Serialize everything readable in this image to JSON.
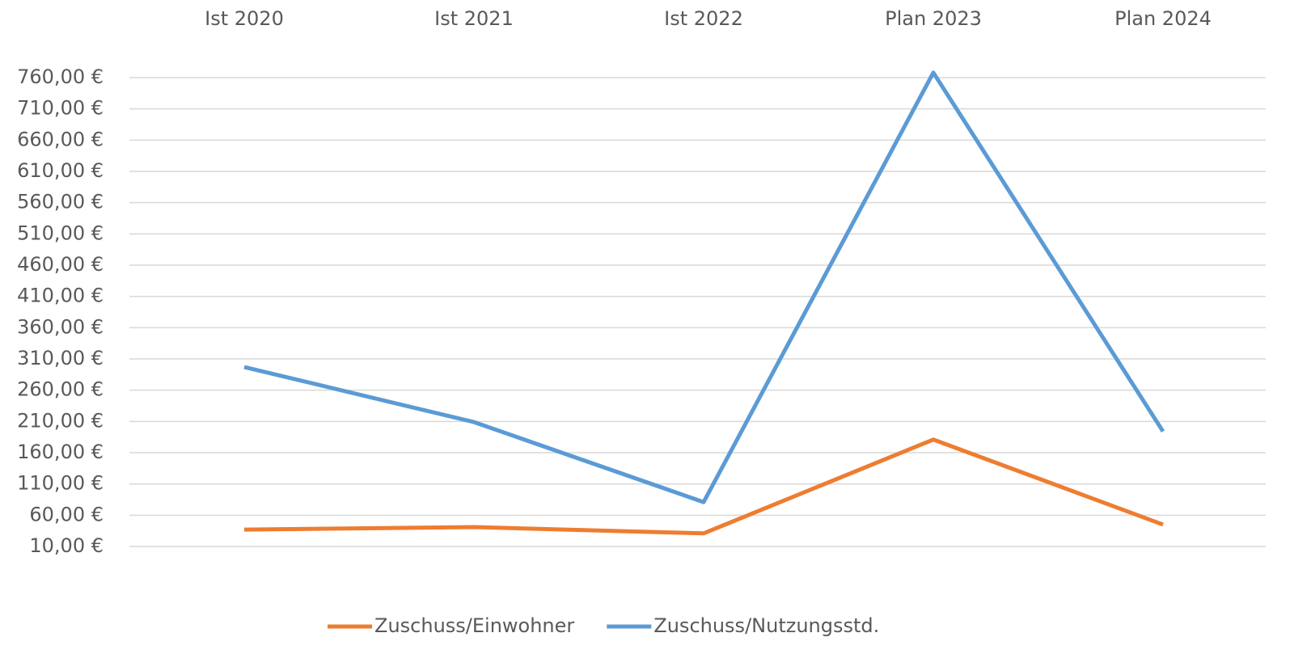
{
  "chart_data": {
    "type": "line",
    "categories": [
      "Ist 2020",
      "Ist 2021",
      "Ist 2022",
      "Plan 2023",
      "Plan 2024"
    ],
    "series": [
      {
        "name": "Zuschuss/Einwohner",
        "color": "#ed7d31",
        "values": [
          37,
          41,
          31,
          181,
          45
        ]
      },
      {
        "name": "Zuschuss/Nutzungsstd.",
        "color": "#5b9bd5",
        "values": [
          297,
          209,
          81,
          768,
          194
        ]
      }
    ],
    "ylim": [
      10,
      760
    ],
    "yticks": [
      {
        "value": 10,
        "label": "10,00 €"
      },
      {
        "value": 60,
        "label": "60,00 €"
      },
      {
        "value": 110,
        "label": "110,00 €"
      },
      {
        "value": 160,
        "label": "160,00 €"
      },
      {
        "value": 210,
        "label": "210,00 €"
      },
      {
        "value": 260,
        "label": "260,00 €"
      },
      {
        "value": 310,
        "label": "310,00 €"
      },
      {
        "value": 360,
        "label": "360,00 €"
      },
      {
        "value": 410,
        "label": "410,00 €"
      },
      {
        "value": 460,
        "label": "460,00 €"
      },
      {
        "value": 510,
        "label": "510,00 €"
      },
      {
        "value": 560,
        "label": "560,00 €"
      },
      {
        "value": 610,
        "label": "610,00 €"
      },
      {
        "value": 660,
        "label": "660,00 €"
      },
      {
        "value": 710,
        "label": "710,00 €"
      },
      {
        "value": 760,
        "label": "760,00 €"
      }
    ],
    "grid": true,
    "legend": "bottom"
  }
}
